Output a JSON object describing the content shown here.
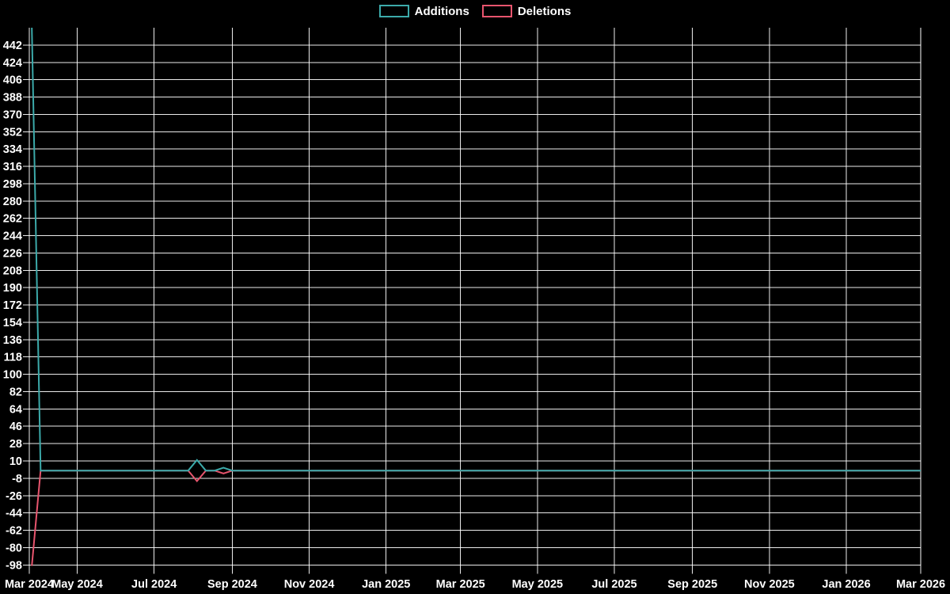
{
  "chart_data": {
    "type": "line",
    "title": "",
    "legend_position": "top-center",
    "grid": true,
    "background": "#000000",
    "grid_color": "#ffffff",
    "text_color": "#ffffff",
    "x_axis": {
      "unit": "months",
      "ticks": [
        {
          "label": "Mar 2024",
          "day": 0
        },
        {
          "label": "May 2024",
          "day": 38
        },
        {
          "label": "Jul 2024",
          "day": 99
        },
        {
          "label": "Sep 2024",
          "day": 161
        },
        {
          "label": "Nov 2024",
          "day": 222
        },
        {
          "label": "Jan 2025",
          "day": 283
        },
        {
          "label": "Mar 2025",
          "day": 342
        },
        {
          "label": "May 2025",
          "day": 403
        },
        {
          "label": "Jul 2025",
          "day": 464
        },
        {
          "label": "Sep 2025",
          "day": 526
        },
        {
          "label": "Nov 2025",
          "day": 587
        },
        {
          "label": "Jan 2026",
          "day": 648
        },
        {
          "label": "Mar 2026",
          "day": 707
        }
      ],
      "day_span": 707
    },
    "y_axis": {
      "min": -106,
      "max": 460,
      "tick_first": -98,
      "tick_last": 442,
      "tick_step": 18
    },
    "series": [
      {
        "name": "Additions",
        "color": "#3caaaa",
        "points_day_value": [
          [
            2,
            460
          ],
          [
            9,
            0
          ],
          [
            126,
            0
          ],
          [
            133,
            11
          ],
          [
            140,
            0
          ],
          [
            147,
            0
          ],
          [
            154,
            3
          ],
          [
            161,
            0
          ],
          [
            707,
            0
          ]
        ]
      },
      {
        "name": "Deletions",
        "color": "#e8556e",
        "points_day_value": [
          [
            2,
            -99
          ],
          [
            9,
            0
          ],
          [
            126,
            0
          ],
          [
            133,
            -11
          ],
          [
            140,
            0
          ],
          [
            147,
            0
          ],
          [
            154,
            -3
          ],
          [
            161,
            0
          ],
          [
            707,
            0
          ]
        ]
      }
    ]
  }
}
